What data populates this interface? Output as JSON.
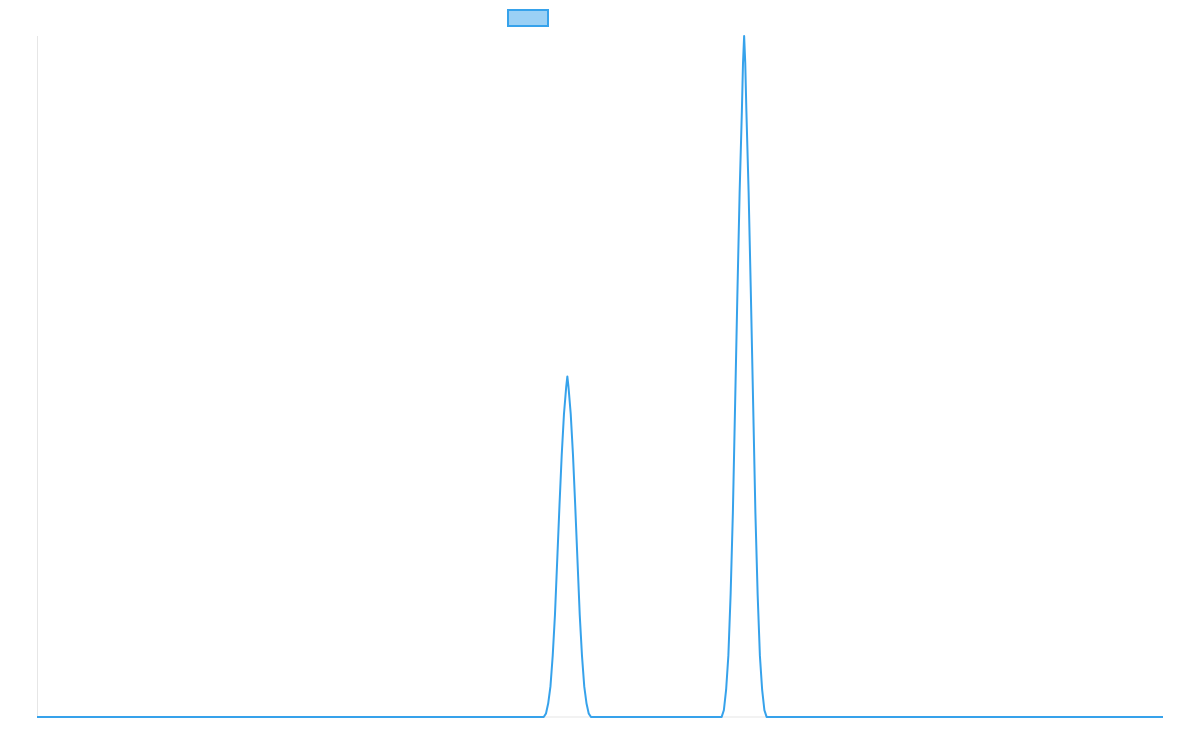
{
  "colors": {
    "line": "#36a2eb",
    "legend_fill": "#9ad0f5",
    "axis": "#e6e6e6",
    "background": "#ffffff"
  },
  "chart_data": {
    "type": "line",
    "title": "",
    "xlabel": "",
    "ylabel": "",
    "grid": false,
    "legend": {
      "placement": "top-center",
      "entries": [
        {
          "name": ""
        }
      ]
    },
    "xlim": [
      0,
      100
    ],
    "ylim": [
      0,
      100
    ],
    "series": [
      {
        "name": "",
        "points": [
          [
            0,
            0
          ],
          [
            45,
            0
          ],
          [
            45.2,
            0.5
          ],
          [
            45.4,
            2
          ],
          [
            45.6,
            4.5
          ],
          [
            45.8,
            9
          ],
          [
            46,
            15
          ],
          [
            46.2,
            23
          ],
          [
            46.4,
            31
          ],
          [
            46.6,
            38.5
          ],
          [
            46.8,
            44.5
          ],
          [
            47,
            48.5
          ],
          [
            47.1,
            50
          ],
          [
            47.2,
            48.5
          ],
          [
            47.4,
            44.5
          ],
          [
            47.6,
            38.5
          ],
          [
            47.8,
            31
          ],
          [
            48,
            23
          ],
          [
            48.2,
            15
          ],
          [
            48.4,
            9
          ],
          [
            48.6,
            4.5
          ],
          [
            48.8,
            2
          ],
          [
            49,
            0.5
          ],
          [
            49.2,
            0
          ],
          [
            60.8,
            0
          ],
          [
            61,
            1
          ],
          [
            61.2,
            4
          ],
          [
            61.4,
            9
          ],
          [
            61.6,
            18
          ],
          [
            61.8,
            30
          ],
          [
            62,
            46
          ],
          [
            62.2,
            62
          ],
          [
            62.4,
            77
          ],
          [
            62.6,
            89
          ],
          [
            62.7,
            96
          ],
          [
            62.8,
            100
          ],
          [
            62.9,
            96
          ],
          [
            63,
            89
          ],
          [
            63.2,
            77
          ],
          [
            63.4,
            62
          ],
          [
            63.6,
            46
          ],
          [
            63.8,
            30
          ],
          [
            64,
            18
          ],
          [
            64.2,
            9
          ],
          [
            64.4,
            4
          ],
          [
            64.6,
            1
          ],
          [
            64.8,
            0
          ],
          [
            100,
            0
          ]
        ]
      }
    ]
  }
}
